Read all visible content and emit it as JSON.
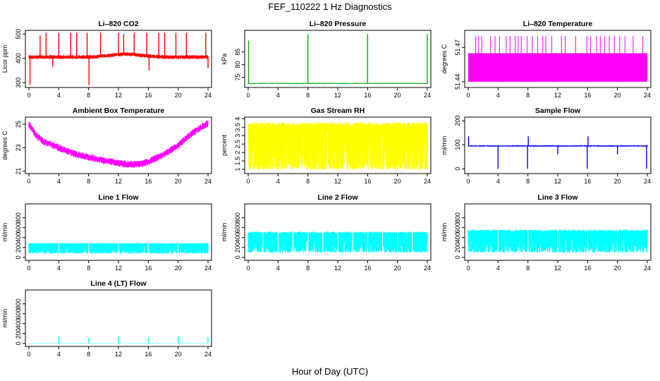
{
  "figure": {
    "title": "FEF_110222  1 Hz Diagnostics",
    "xlabel": "Hour of Day (UTC)"
  },
  "chart_data": [
    {
      "id": "co2",
      "type": "line",
      "title": "Li–820 CO2",
      "ylabel": "Licor ppm",
      "color": "#ff0000",
      "xlim": [
        0,
        24
      ],
      "ylim": [
        280,
        515
      ],
      "xticks": [
        0,
        4,
        8,
        12,
        16,
        20,
        24
      ],
      "yticks": [
        300,
        400,
        500
      ],
      "baseline": 405,
      "noise": 8,
      "hump": {
        "center": 13,
        "width": 3,
        "height": 12
      },
      "spikes": [
        {
          "x": 0.15,
          "y": 290
        },
        {
          "x": 1.5,
          "y": 495
        },
        {
          "x": 2.3,
          "y": 505
        },
        {
          "x": 3.2,
          "y": 365
        },
        {
          "x": 4.0,
          "y": 505
        },
        {
          "x": 5.6,
          "y": 505
        },
        {
          "x": 6.4,
          "y": 505
        },
        {
          "x": 7.8,
          "y": 505
        },
        {
          "x": 8.05,
          "y": 290
        },
        {
          "x": 9.6,
          "y": 505
        },
        {
          "x": 12.0,
          "y": 505
        },
        {
          "x": 12.7,
          "y": 500
        },
        {
          "x": 14.1,
          "y": 505
        },
        {
          "x": 15.8,
          "y": 505
        },
        {
          "x": 16.1,
          "y": 350
        },
        {
          "x": 17.4,
          "y": 505
        },
        {
          "x": 18.2,
          "y": 505
        },
        {
          "x": 19.7,
          "y": 505
        },
        {
          "x": 21.1,
          "y": 505
        },
        {
          "x": 23.7,
          "y": 505
        },
        {
          "x": 24.0,
          "y": 360
        }
      ]
    },
    {
      "id": "pressure",
      "type": "line",
      "title": "Li–820 Pressure",
      "ylabel": "kPa",
      "color": "#00b000",
      "xlim": [
        0,
        24
      ],
      "ylim": [
        71,
        93.5
      ],
      "xticks": [
        0,
        4,
        8,
        12,
        16,
        20,
        24
      ],
      "yticks": [
        75,
        80,
        85
      ],
      "baseline": 72.6,
      "noise": 0.2,
      "spikes": [
        {
          "x": 0.05,
          "y": 89.5
        },
        {
          "x": 8.0,
          "y": 92
        },
        {
          "x": 16.0,
          "y": 92
        },
        {
          "x": 24.0,
          "y": 92
        }
      ]
    },
    {
      "id": "temp",
      "type": "line",
      "title": "Li–820 Temperature",
      "ylabel": "degrees C",
      "color": "#ff00ff",
      "xlim": [
        0,
        24
      ],
      "ylim": [
        51.435,
        51.485
      ],
      "xticks": [
        0,
        4,
        8,
        12,
        16,
        20,
        24
      ],
      "yticks": [
        51.44,
        51.47
      ],
      "band": [
        51.44,
        51.465
      ],
      "spike_top": 51.48,
      "spikes": [
        1.0,
        1.4,
        1.8,
        3.0,
        3.6,
        4.2,
        5.1,
        5.6,
        6.3,
        6.7,
        7.1,
        7.9,
        8.6,
        9.3,
        10.0,
        10.4,
        11.2,
        12.5,
        13.0,
        14.4,
        15.9,
        16.4,
        17.2,
        17.7,
        18.3,
        18.9,
        19.6,
        20.3,
        21.0,
        22.1,
        23.4
      ]
    },
    {
      "id": "box",
      "type": "line",
      "title": "Ambient Box Temperature",
      "ylabel": "degrees C",
      "color": "#ff00ff",
      "xlim": [
        0,
        24
      ],
      "ylim": [
        20.8,
        25.6
      ],
      "xticks": [
        0,
        4,
        8,
        12,
        16,
        20,
        24
      ],
      "yticks": [
        21,
        23,
        25
      ],
      "profile": [
        [
          0,
          25.0
        ],
        [
          1,
          24.0
        ],
        [
          2,
          23.5
        ],
        [
          4,
          23.0
        ],
        [
          6,
          22.5
        ],
        [
          8,
          22.2
        ],
        [
          10,
          21.9
        ],
        [
          12,
          21.7
        ],
        [
          13,
          21.6
        ],
        [
          15,
          21.6
        ],
        [
          16,
          21.8
        ],
        [
          18,
          22.4
        ],
        [
          20,
          23.2
        ],
        [
          22,
          24.3
        ],
        [
          24,
          25.1
        ]
      ],
      "noise": 0.3
    },
    {
      "id": "rh",
      "type": "line",
      "title": "Gas Stream RH",
      "ylabel": "percent",
      "color": "#ffff00",
      "xlim": [
        0,
        24
      ],
      "ylim": [
        0.75,
        4.1
      ],
      "xticks": [
        0,
        4,
        8,
        12,
        16,
        20,
        24
      ],
      "yticks": [
        1.0,
        1.5,
        2.0,
        2.5,
        3.0,
        3.5,
        4.0
      ],
      "band": [
        1.0,
        3.8
      ]
    },
    {
      "id": "sample",
      "type": "line",
      "title": "Sample Flow",
      "ylabel": "ml/min",
      "color": "#0000ff",
      "xlim": [
        0,
        24
      ],
      "ylim": [
        -20,
        215
      ],
      "xticks": [
        0,
        4,
        8,
        12,
        16,
        20,
        24
      ],
      "yticks": [
        0,
        100,
        200
      ],
      "baseline": 95,
      "noise": 3,
      "spikes": [
        {
          "x": 0.05,
          "y": 135
        },
        {
          "x": 4.0,
          "y": 0
        },
        {
          "x": 7.95,
          "y": 0
        },
        {
          "x": 8.05,
          "y": 135
        },
        {
          "x": 12.0,
          "y": 60
        },
        {
          "x": 15.95,
          "y": 0
        },
        {
          "x": 16.05,
          "y": 135
        },
        {
          "x": 20.0,
          "y": 60
        },
        {
          "x": 23.9,
          "y": 0
        }
      ]
    },
    {
      "id": "line1",
      "type": "line",
      "title": "Line 1 Flow",
      "ylabel": "ml/min",
      "color": "#00ffff",
      "xlim": [
        0,
        24
      ],
      "ylim": [
        -60,
        1080
      ],
      "xticks": [
        0,
        4,
        8,
        12,
        16,
        20,
        24
      ],
      "yticks": [
        0,
        200,
        400,
        600,
        800
      ],
      "band": [
        80,
        290
      ],
      "xrange": [
        0,
        24
      ],
      "gaps": [
        4,
        8,
        12,
        16,
        20
      ]
    },
    {
      "id": "line2",
      "type": "line",
      "title": "Line 2 Flow",
      "ylabel": "ml/min",
      "color": "#00ffff",
      "xlim": [
        0,
        24
      ],
      "ylim": [
        -60,
        1080
      ],
      "xticks": [
        0,
        4,
        8,
        12,
        16,
        20,
        24
      ],
      "yticks": [
        0,
        200,
        400,
        600,
        800
      ],
      "band": [
        100,
        520
      ],
      "xrange": [
        0,
        24
      ],
      "gaps": [
        2,
        4,
        6,
        8,
        10,
        12,
        14,
        16,
        18,
        20,
        22
      ]
    },
    {
      "id": "line3",
      "type": "line",
      "title": "Line 3 Flow",
      "ylabel": "ml/min",
      "color": "#00ffff",
      "xlim": [
        0,
        24
      ],
      "ylim": [
        -60,
        1080
      ],
      "xticks": [
        0,
        4,
        8,
        12,
        16,
        20,
        24
      ],
      "yticks": [
        0,
        200,
        400,
        600,
        800
      ],
      "band": [
        100,
        560
      ],
      "xrange": [
        0,
        24
      ],
      "gaps": [
        4,
        8,
        12,
        16,
        20
      ]
    },
    {
      "id": "line4",
      "type": "line",
      "title": "Line 4 (LT) Flow",
      "ylabel": "ml/min",
      "color": "#00ffff",
      "xlim": [
        0,
        24
      ],
      "ylim": [
        -60,
        1080
      ],
      "xticks": [
        0,
        4,
        8,
        12,
        16,
        20,
        24
      ],
      "yticks": [
        0,
        200,
        400,
        600,
        800
      ],
      "baseline": 5,
      "noise": 3,
      "spikes": [
        {
          "x": 4.0,
          "y": 150
        },
        {
          "x": 8.0,
          "y": 110
        },
        {
          "x": 12.0,
          "y": 150
        },
        {
          "x": 16.0,
          "y": 110
        },
        {
          "x": 20.0,
          "y": 150
        },
        {
          "x": 24.0,
          "y": 120
        }
      ]
    }
  ]
}
